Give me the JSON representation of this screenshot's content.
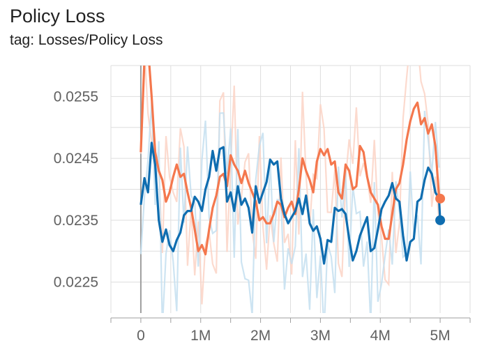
{
  "header": {
    "title": "Policy Loss",
    "subtitle": "tag: Losses/Policy Loss"
  },
  "chart_data": {
    "type": "line",
    "title": "Policy Loss",
    "subtitle": "tag: Losses/Policy Loss",
    "xlabel": "",
    "ylabel": "",
    "xlim": [
      -500000,
      5500000
    ],
    "ylim": [
      0.022,
      0.026
    ],
    "x_ticks": [
      {
        "value": 0,
        "label": "0"
      },
      {
        "value": 1000000,
        "label": "1M"
      },
      {
        "value": 2000000,
        "label": "2M"
      },
      {
        "value": 3000000,
        "label": "3M"
      },
      {
        "value": 4000000,
        "label": "4M"
      },
      {
        "value": 5000000,
        "label": "5M"
      }
    ],
    "y_ticks": [
      {
        "value": 0.0225,
        "label": "0.0225"
      },
      {
        "value": 0.0235,
        "label": "0.0235"
      },
      {
        "value": 0.0245,
        "label": "0.0245"
      },
      {
        "value": 0.0255,
        "label": "0.0255"
      }
    ],
    "grid": true,
    "legend": "none",
    "series": [
      {
        "color": "#f4774d",
        "raw_color": "#fbd3c5",
        "x": [
          0,
          60000,
          120000,
          180000,
          240000,
          300000,
          360000,
          420000,
          480000,
          540000,
          600000,
          660000,
          720000,
          780000,
          840000,
          900000,
          960000,
          1020000,
          1080000,
          1140000,
          1200000,
          1260000,
          1320000,
          1380000,
          1440000,
          1500000,
          1560000,
          1620000,
          1680000,
          1740000,
          1800000,
          1860000,
          1920000,
          1980000,
          2040000,
          2100000,
          2160000,
          2220000,
          2280000,
          2340000,
          2400000,
          2460000,
          2520000,
          2580000,
          2640000,
          2700000,
          2760000,
          2820000,
          2880000,
          2940000,
          3000000,
          3060000,
          3120000,
          3180000,
          3240000,
          3300000,
          3360000,
          3420000,
          3480000,
          3540000,
          3600000,
          3660000,
          3720000,
          3780000,
          3840000,
          3900000,
          3960000,
          4020000,
          4080000,
          4140000,
          4200000,
          4260000,
          4320000,
          4380000,
          4440000,
          4500000,
          4560000,
          4620000,
          4680000,
          4740000,
          4800000,
          4860000,
          4920000,
          4980000
        ],
        "values": [
          0.0246,
          0.0261,
          0.0263,
          0.0255,
          0.0246,
          0.0243,
          0.02415,
          0.0238,
          0.02395,
          0.0242,
          0.0244,
          0.0242,
          0.02425,
          0.02395,
          0.0237,
          0.02335,
          0.023,
          0.0231,
          0.02295,
          0.02335,
          0.0237,
          0.0239,
          0.0242,
          0.02425,
          0.02405,
          0.02455,
          0.0244,
          0.0243,
          0.0241,
          0.0243,
          0.0241,
          0.02395,
          0.0238,
          0.0235,
          0.02355,
          0.02345,
          0.02345,
          0.0236,
          0.0238,
          0.02375,
          0.02355,
          0.0237,
          0.0238,
          0.0236,
          0.024,
          0.0245,
          0.0243,
          0.02415,
          0.02395,
          0.02445,
          0.02465,
          0.02455,
          0.02465,
          0.0244,
          0.02445,
          0.02395,
          0.02385,
          0.0244,
          0.0243,
          0.024,
          0.02405,
          0.0247,
          0.0246,
          0.0242,
          0.02395,
          0.02385,
          0.02375,
          0.0234,
          0.0232,
          0.0232,
          0.0236,
          0.024,
          0.0241,
          0.0244,
          0.0248,
          0.0251,
          0.0253,
          0.0254,
          0.02505,
          0.02515,
          0.0249,
          0.02505,
          0.0247,
          0.0239
        ],
        "last_value": 0.02385,
        "last_x": 5000000
      },
      {
        "color": "#0f6db0",
        "raw_color": "#c4dff0",
        "x": [
          0,
          60000,
          120000,
          180000,
          240000,
          300000,
          360000,
          420000,
          480000,
          540000,
          600000,
          660000,
          720000,
          780000,
          840000,
          900000,
          960000,
          1020000,
          1080000,
          1140000,
          1200000,
          1260000,
          1320000,
          1380000,
          1440000,
          1500000,
          1560000,
          1620000,
          1680000,
          1740000,
          1800000,
          1860000,
          1920000,
          1980000,
          2040000,
          2100000,
          2160000,
          2220000,
          2280000,
          2340000,
          2400000,
          2460000,
          2520000,
          2580000,
          2640000,
          2700000,
          2760000,
          2820000,
          2880000,
          2940000,
          3000000,
          3060000,
          3120000,
          3180000,
          3240000,
          3300000,
          3360000,
          3420000,
          3480000,
          3540000,
          3600000,
          3660000,
          3720000,
          3780000,
          3840000,
          3900000,
          3960000,
          4020000,
          4080000,
          4140000,
          4200000,
          4260000,
          4320000,
          4380000,
          4440000,
          4500000,
          4560000,
          4620000,
          4680000,
          4740000,
          4800000,
          4860000,
          4920000,
          4980000
        ],
        "values": [
          0.02375,
          0.02418,
          0.02395,
          0.02475,
          0.0244,
          0.0235,
          0.02315,
          0.02335,
          0.0231,
          0.023,
          0.02318,
          0.0233,
          0.02358,
          0.02365,
          0.02365,
          0.02388,
          0.0238,
          0.02365,
          0.024,
          0.0242,
          0.02462,
          0.0243,
          0.02465,
          0.02468,
          0.0238,
          0.02395,
          0.02365,
          0.02405,
          0.02375,
          0.02385,
          0.0237,
          0.0233,
          0.02405,
          0.02378,
          0.02395,
          0.02412,
          0.02448,
          0.0244,
          0.02445,
          0.02385,
          0.0236,
          0.02345,
          0.02355,
          0.02365,
          0.02385,
          0.0236,
          0.0239,
          0.02345,
          0.02333,
          0.0234,
          0.0232,
          0.0228,
          0.02318,
          0.02315,
          0.0237,
          0.02365,
          0.02368,
          0.0236,
          0.0232,
          0.02285,
          0.023,
          0.02325,
          0.0234,
          0.02355,
          0.023,
          0.02305,
          0.02335,
          0.02368,
          0.0238,
          0.0239,
          0.0241,
          0.02385,
          0.0238,
          0.02325,
          0.02285,
          0.02315,
          0.0232,
          0.0238,
          0.02385,
          0.02415,
          0.02435,
          0.02425,
          0.02395,
          0.02385
        ],
        "last_value": 0.0235,
        "last_x": 5000000
      }
    ]
  }
}
